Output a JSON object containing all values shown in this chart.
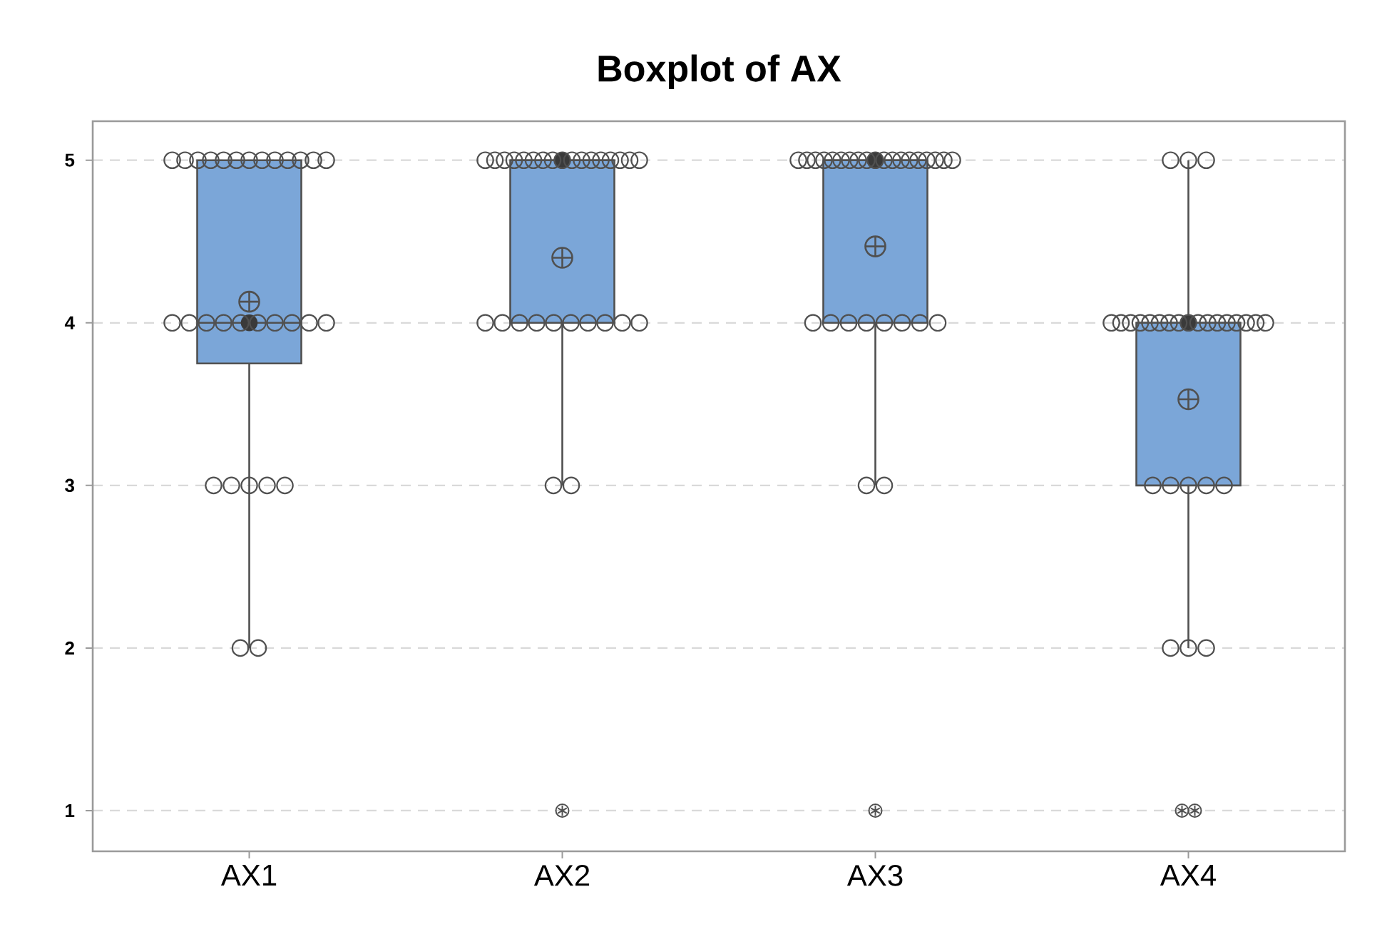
{
  "chart_data": {
    "type": "box",
    "title": "Boxplot of AX",
    "categories": [
      "AX1",
      "AX2",
      "AX3",
      "AX4"
    ],
    "series": [
      {
        "type": "box",
        "color": "#7ba6d8",
        "boxes": [
          {
            "low": 2,
            "q1": 3.75,
            "median": 4,
            "q3": 5,
            "high": 5,
            "mean": 4.13
          },
          {
            "low": 3,
            "q1": 4,
            "median": 5,
            "q3": 5,
            "high": 5,
            "mean": 4.4,
            "outliers": [
              1
            ]
          },
          {
            "low": 3,
            "q1": 4,
            "median": 5,
            "q3": 5,
            "high": 5,
            "mean": 4.47,
            "outliers": [
              1
            ]
          },
          {
            "low": 2,
            "q1": 3,
            "median": 4,
            "q3": 4,
            "high": 5,
            "mean": 3.53,
            "outliers": [
              1,
              1
            ]
          }
        ]
      },
      {
        "type": "scatter",
        "color": "#505050",
        "marker": "circle",
        "x": [
          "AX1",
          "AX1",
          "AX1",
          "AX1",
          "AX1",
          "AX1",
          "AX1",
          "AX1",
          "AX1",
          "AX1",
          "AX1",
          "AX1",
          "AX1",
          "AX1",
          "AX1",
          "AX1",
          "AX1",
          "AX1",
          "AX1",
          "AX1",
          "AX1",
          "AX1",
          "AX1",
          "AX1",
          "AX1",
          "AX1",
          "AX1",
          "AX1",
          "AX1",
          "AX1",
          "AX2",
          "AX2",
          "AX2",
          "AX2",
          "AX2",
          "AX2",
          "AX2",
          "AX2",
          "AX2",
          "AX2",
          "AX2",
          "AX2",
          "AX2",
          "AX2",
          "AX2",
          "AX2",
          "AX2",
          "AX2",
          "AX2",
          "AX2",
          "AX2",
          "AX2",
          "AX2",
          "AX2",
          "AX2",
          "AX2",
          "AX2",
          "AX2",
          "AX2",
          "AX3",
          "AX3",
          "AX3",
          "AX3",
          "AX3",
          "AX3",
          "AX3",
          "AX3",
          "AX3",
          "AX3",
          "AX3",
          "AX3",
          "AX3",
          "AX3",
          "AX3",
          "AX3",
          "AX3",
          "AX3",
          "AX3",
          "AX3",
          "AX3",
          "AX3",
          "AX3",
          "AX3",
          "AX3",
          "AX3",
          "AX3",
          "AX3",
          "AX3",
          "AX4",
          "AX4",
          "AX4",
          "AX4",
          "AX4",
          "AX4",
          "AX4",
          "AX4",
          "AX4",
          "AX4",
          "AX4",
          "AX4",
          "AX4",
          "AX4",
          "AX4",
          "AX4",
          "AX4",
          "AX4",
          "AX4",
          "AX4",
          "AX4",
          "AX4",
          "AX4",
          "AX4",
          "AX4",
          "AX4",
          "AX4",
          "AX4"
        ],
        "values": [
          2,
          2,
          3,
          3,
          3,
          3,
          3,
          4,
          4,
          4,
          4,
          4,
          4,
          4,
          4,
          4,
          4,
          5,
          5,
          5,
          5,
          5,
          5,
          5,
          5,
          5,
          5,
          5,
          5,
          5,
          3,
          3,
          4,
          4,
          4,
          4,
          4,
          4,
          4,
          4,
          4,
          4,
          5,
          5,
          5,
          5,
          5,
          5,
          5,
          5,
          5,
          5,
          5,
          5,
          5,
          5,
          5,
          5,
          5,
          3,
          3,
          4,
          4,
          4,
          4,
          4,
          4,
          4,
          4,
          5,
          5,
          5,
          5,
          5,
          5,
          5,
          5,
          5,
          5,
          5,
          5,
          5,
          5,
          5,
          5,
          5,
          5,
          5,
          2,
          2,
          2,
          3,
          3,
          3,
          3,
          3,
          4,
          4,
          4,
          4,
          4,
          4,
          4,
          4,
          4,
          4,
          4,
          4,
          4,
          4,
          4,
          4,
          4,
          5,
          5,
          5
        ]
      },
      {
        "type": "scatter",
        "color": "#3a3a3a",
        "marker": "circle",
        "x": [
          "AX1",
          "AX2",
          "AX3",
          "AX4"
        ],
        "values": [
          4,
          5,
          5,
          4
        ]
      }
    ],
    "ylim": [
      0.75,
      5.24
    ],
    "yticks": [
      1,
      2,
      3,
      4,
      5
    ],
    "grid": "y"
  }
}
